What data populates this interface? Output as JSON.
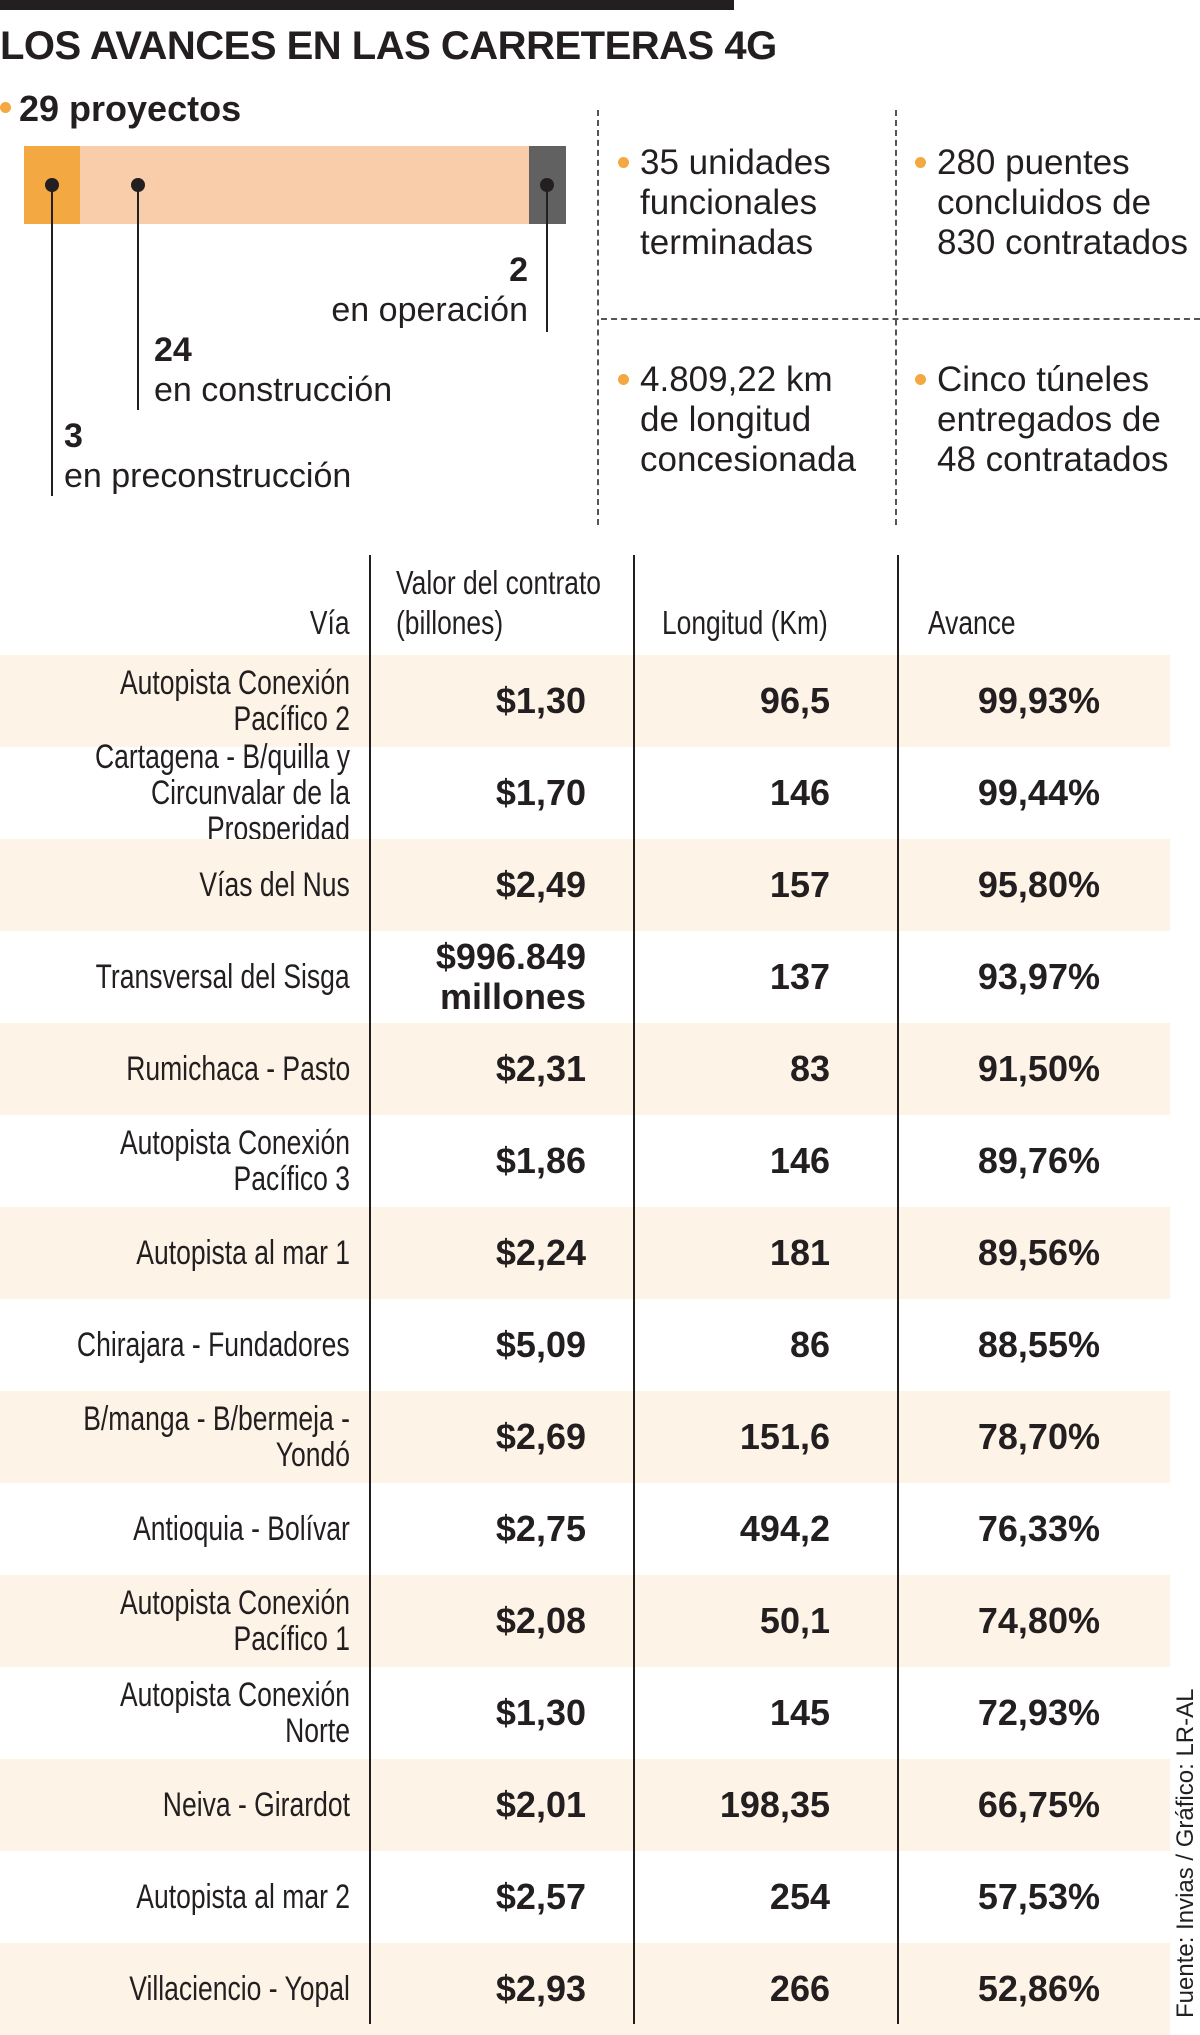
{
  "title": "LOS AVANCES EN LAS CARRETERAS 4G",
  "projects": {
    "label": "29 proyectos",
    "total": 29,
    "segments": [
      {
        "number": "3",
        "value": 3,
        "label": "en preconstrucción",
        "color": "#f3a842"
      },
      {
        "number": "24",
        "value": 24,
        "label": "en construcción",
        "color": "#f9cdaa"
      },
      {
        "number": "2",
        "value": 2,
        "label": "en operación",
        "color": "#616161"
      }
    ]
  },
  "stats": [
    "35 unidades\nfuncionales\nterminadas",
    "280 puentes\nconcluidos de\n830 contratados",
    "4.809,22 km\nde longitud\nconcesionada",
    "Cinco túneles\nentregados de\n48 contratados"
  ],
  "table": {
    "headers": {
      "via": "Vía",
      "valor": "Valor del contrato\n(billones)",
      "longitud": "Longitud (Km)",
      "avance": "Avance"
    },
    "rows": [
      {
        "via": "Autopista Conexión Pacífico 2",
        "valor": "$1,30",
        "longitud": "96,5",
        "avance": "99,93%"
      },
      {
        "via": "Cartagena - B/quilla y\nCircunvalar de la Prosperidad",
        "valor": "$1,70",
        "longitud": "146",
        "avance": "99,44%"
      },
      {
        "via": "Vías del Nus",
        "valor": "$2,49",
        "longitud": "157",
        "avance": "95,80%"
      },
      {
        "via": "Transversal del Sisga",
        "valor": "$996.849\nmillones",
        "longitud": "137",
        "avance": "93,97%"
      },
      {
        "via": "Rumichaca - Pasto",
        "valor": "$2,31",
        "longitud": "83",
        "avance": "91,50%"
      },
      {
        "via": "Autopista Conexión Pacífico 3",
        "valor": "$1,86",
        "longitud": "146",
        "avance": "89,76%"
      },
      {
        "via": "Autopista al mar 1",
        "valor": "$2,24",
        "longitud": "181",
        "avance": "89,56%"
      },
      {
        "via": "Chirajara - Fundadores",
        "valor": "$5,09",
        "longitud": "86",
        "avance": "88,55%"
      },
      {
        "via": "B/manga - B/bermeja - Yondó",
        "valor": "$2,69",
        "longitud": "151,6",
        "avance": "78,70%"
      },
      {
        "via": "Antioquia - Bolívar",
        "valor": "$2,75",
        "longitud": "494,2",
        "avance": "76,33%"
      },
      {
        "via": "Autopista Conexión Pacífico 1",
        "valor": "$2,08",
        "longitud": "50,1",
        "avance": "74,80%"
      },
      {
        "via": "Autopista Conexión Norte",
        "valor": "$1,30",
        "longitud": "145",
        "avance": "72,93%"
      },
      {
        "via": "Neiva - Girardot",
        "valor": "$2,01",
        "longitud": "198,35",
        "avance": "66,75%"
      },
      {
        "via": "Autopista al mar 2",
        "valor": "$2,57",
        "longitud": "254",
        "avance": "57,53%"
      },
      {
        "via": "Villaciencio - Yopal",
        "valor": "$2,93",
        "longitud": "266",
        "avance": "52,86%"
      }
    ]
  },
  "source": "Fuente: Invias / Gráfico: LR-AL",
  "colors": {
    "accent": "#f3a842",
    "row_alt": "#fdf3e7",
    "text": "#231f20"
  }
}
